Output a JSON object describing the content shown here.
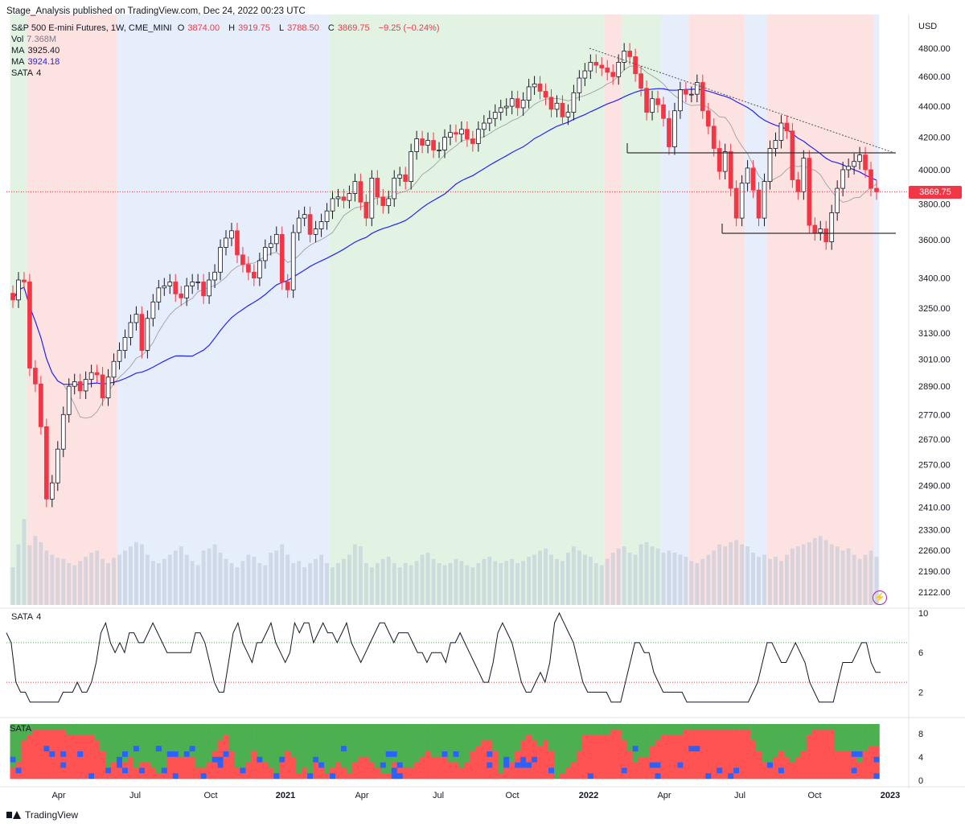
{
  "header": {
    "published": "Stage_Analysis published on TradingView.com, Dec 24, 2022 00:23 UTC",
    "symbol": "S&P 500 E-mini Futures, 1W, CME_MINI",
    "open_label": "O",
    "open": "3874.00",
    "high_label": "H",
    "high": "3919.75",
    "low_label": "L",
    "low": "3788.50",
    "close_label": "C",
    "close": "3869.75",
    "change": "−9.25 (−0.24%)",
    "vol_label": "Vol",
    "vol": "7.368M",
    "ma1_label": "MA",
    "ma1": "3925.40",
    "ma2_label": "MA",
    "ma2": "3924.18",
    "sata_label": "SATA",
    "sata_value": "4"
  },
  "panes": {
    "sata_label": "SATA",
    "sata_value": "4",
    "sata3_label": "SATA"
  },
  "price_tag": "3869.75",
  "brand": "TradingView",
  "colors": {
    "up": "#ffffff",
    "down": "#f23645",
    "ma_long": "#2323ff",
    "ma_short": "#a8a8a8",
    "bg_green": "#e3f3e3",
    "bg_red": "#fde2e2",
    "bg_blue": "#e7eefb",
    "sata_green": "#4caf50",
    "sata_red": "#ff5252",
    "sata_blue": "#2962ff"
  },
  "chart_data": [
    {
      "type": "candlestick",
      "title": "S&P 500 E-mini Futures, 1W, CME_MINI",
      "y_scale": "log",
      "ylabel": "USD",
      "ylim": [
        2122,
        4890
      ],
      "y_ticks": [
        "4800.00",
        "4600.00",
        "4400.00",
        "4200.00",
        "4000.00",
        "3800.00",
        "3600.00",
        "3400.00",
        "3250.00",
        "3130.00",
        "3010.00",
        "2890.00",
        "2770.00",
        "2670.00",
        "2570.00",
        "2490.00",
        "2410.00",
        "2330.00",
        "2260.00",
        "2190.00",
        "2122.00"
      ],
      "x_ticks": [
        "Apr",
        "Jul",
        "Oct",
        "2021",
        "Apr",
        "Jul",
        "Oct",
        "2022",
        "Apr",
        "Jul",
        "Oct",
        "2023"
      ],
      "last_close": 3869.75,
      "series_close_estimated": [
        3290,
        3390,
        3380,
        2970,
        2900,
        2720,
        2440,
        2500,
        2630,
        2770,
        2890,
        2910,
        2870,
        2920,
        2950,
        2940,
        2840,
        2930,
        3000,
        3050,
        3110,
        3180,
        3220,
        3050,
        3200,
        3280,
        3350,
        3360,
        3380,
        3320,
        3300,
        3360,
        3380,
        3380,
        3310,
        3390,
        3430,
        3560,
        3610,
        3650,
        3520,
        3470,
        3430,
        3400,
        3490,
        3560,
        3580,
        3630,
        3380,
        3340,
        3640,
        3720,
        3740,
        3630,
        3660,
        3700,
        3760,
        3830,
        3840,
        3820,
        3860,
        3930,
        3810,
        3720,
        3950,
        3840,
        3790,
        3830,
        3950,
        3970,
        3930,
        4110,
        4190,
        4150,
        4180,
        4120,
        4120,
        4200,
        4230,
        4220,
        4250,
        4190,
        4160,
        4250,
        4290,
        4320,
        4360,
        4390,
        4400,
        4450,
        4390,
        4440,
        4530,
        4550,
        4500,
        4460,
        4380,
        4420,
        4330,
        4360,
        4490,
        4590,
        4640,
        4700,
        4680,
        4660,
        4630,
        4600,
        4700,
        4780,
        4740,
        4620,
        4520,
        4360,
        4450,
        4410,
        4320,
        4140,
        4370,
        4510,
        4480,
        4480,
        4560,
        4370,
        4270,
        4130,
        3990,
        4110,
        3890,
        3720,
        3920,
        4010,
        3880,
        3720,
        3930,
        4130,
        4180,
        4290,
        4240,
        3940,
        3870,
        4070,
        3680,
        3640,
        3660,
        3590,
        3750,
        3890,
        4000,
        4020,
        4050,
        4090,
        4000,
        3890,
        3870
      ]
    },
    {
      "type": "bar",
      "title": "Vol",
      "last_value": "7.368M",
      "relative_values_estimated": [
        0.36,
        0.58,
        0.82,
        0.57,
        0.66,
        0.6,
        0.52,
        0.48,
        0.45,
        0.44,
        0.4,
        0.38,
        0.42,
        0.46,
        0.5,
        0.52,
        0.44,
        0.4,
        0.45,
        0.48,
        0.52,
        0.56,
        0.6,
        0.58,
        0.48,
        0.42,
        0.4,
        0.44,
        0.48,
        0.52,
        0.56,
        0.48,
        0.42,
        0.38,
        0.52,
        0.54,
        0.58,
        0.5,
        0.44,
        0.4,
        0.36,
        0.42,
        0.48,
        0.46,
        0.4,
        0.38,
        0.5,
        0.52,
        0.58,
        0.48,
        0.4,
        0.42,
        0.36,
        0.4,
        0.44,
        0.48,
        0.4,
        0.36,
        0.4,
        0.44,
        0.48,
        0.58,
        0.56,
        0.4,
        0.36,
        0.4,
        0.44,
        0.46,
        0.4,
        0.36,
        0.4,
        0.38,
        0.42,
        0.48,
        0.5,
        0.44,
        0.4,
        0.38,
        0.4,
        0.44,
        0.42,
        0.38,
        0.36,
        0.4,
        0.44,
        0.46,
        0.42,
        0.4,
        0.42,
        0.44,
        0.4,
        0.42,
        0.46,
        0.48,
        0.52,
        0.54,
        0.48,
        0.44,
        0.42,
        0.5,
        0.56,
        0.52,
        0.48,
        0.46,
        0.4,
        0.38,
        0.44,
        0.5,
        0.54,
        0.56,
        0.5,
        0.48,
        0.58,
        0.6,
        0.56,
        0.54,
        0.5,
        0.52,
        0.5,
        0.48,
        0.46,
        0.42,
        0.4,
        0.44,
        0.48,
        0.52,
        0.58,
        0.56,
        0.6,
        0.62,
        0.58,
        0.56,
        0.5,
        0.46,
        0.48,
        0.44,
        0.46,
        0.42,
        0.48,
        0.54,
        0.56,
        0.58,
        0.6,
        0.64,
        0.66,
        0.62,
        0.58,
        0.56,
        0.52,
        0.54,
        0.48,
        0.44,
        0.48,
        0.52,
        0.46,
        0.4,
        0.42
      ]
    },
    {
      "type": "line",
      "title": "SATA",
      "last_value": 4,
      "ylim": [
        0,
        10
      ],
      "y_ticks": [
        "10",
        "6",
        "2"
      ],
      "reference_lines": [
        7,
        3
      ],
      "values_estimated": [
        8,
        7,
        3,
        2,
        2,
        1,
        1,
        1,
        1,
        1,
        1,
        1,
        2,
        2,
        2,
        3,
        2,
        2,
        3,
        5,
        8,
        9,
        7,
        6,
        7,
        6,
        8,
        8,
        7,
        7,
        8,
        9,
        8,
        7,
        6,
        6,
        6,
        6,
        6,
        6,
        8,
        8,
        7,
        5,
        3,
        2,
        2,
        5,
        8,
        9,
        7,
        6,
        5,
        7,
        7,
        8,
        9,
        7,
        6,
        5,
        6,
        9,
        8,
        9,
        9,
        7,
        8,
        9,
        8,
        8,
        7,
        8,
        9,
        7,
        6,
        5,
        6,
        7,
        8,
        9,
        9,
        8,
        7,
        8,
        8,
        8,
        7,
        6,
        6,
        5,
        6,
        6,
        6,
        5,
        7,
        7,
        8,
        7,
        6,
        5,
        4,
        3,
        3,
        5,
        8,
        9,
        8,
        7,
        5,
        3,
        2,
        2,
        3,
        4,
        3,
        5,
        9,
        10,
        9,
        8,
        7,
        5,
        3,
        2,
        2,
        2,
        2,
        2,
        1,
        1,
        1,
        3,
        5,
        7,
        7,
        6,
        6,
        4,
        3,
        2,
        2,
        2,
        2,
        2,
        1,
        1,
        1,
        1,
        1,
        1,
        1,
        1,
        1,
        1,
        1,
        1,
        1,
        1,
        2,
        3,
        5,
        7,
        7,
        6,
        5,
        5,
        6,
        7,
        6,
        5,
        3,
        2,
        1,
        1,
        1,
        1,
        3,
        5,
        5,
        5,
        6,
        7,
        7,
        5,
        4,
        4
      ]
    },
    {
      "type": "heatmap",
      "title": "SATA",
      "ylim": [
        0,
        10
      ],
      "y_ticks": [
        "8",
        "4",
        "0"
      ],
      "categories": [
        "green",
        "red",
        "blue"
      ]
    }
  ]
}
